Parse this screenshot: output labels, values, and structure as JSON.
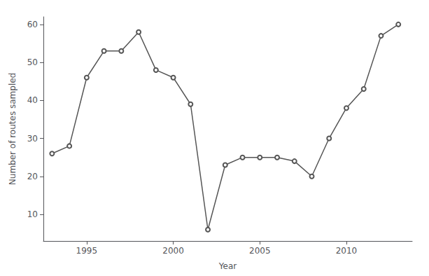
{
  "chart_data": {
    "type": "line",
    "x": [
      1993,
      1994,
      1995,
      1996,
      1997,
      1998,
      1999,
      2000,
      2001,
      2002,
      2003,
      2004,
      2005,
      2006,
      2007,
      2008,
      2009,
      2010,
      2011,
      2012,
      2013
    ],
    "values": [
      26,
      28,
      46,
      53,
      53,
      58,
      48,
      46,
      39,
      6,
      23,
      25,
      25,
      25,
      24,
      20,
      30,
      38,
      43,
      57,
      60
    ],
    "xlabel": "Year",
    "ylabel": "Number of routes sampled",
    "xlim": [
      1992.5,
      2013.8
    ],
    "ylim": [
      3,
      62
    ],
    "xticks": [
      1995,
      2000,
      2005,
      2010
    ],
    "yticks": [
      10,
      20,
      30,
      40,
      50,
      60
    ],
    "color": "#555555",
    "marker": "circle",
    "grid": false
  }
}
